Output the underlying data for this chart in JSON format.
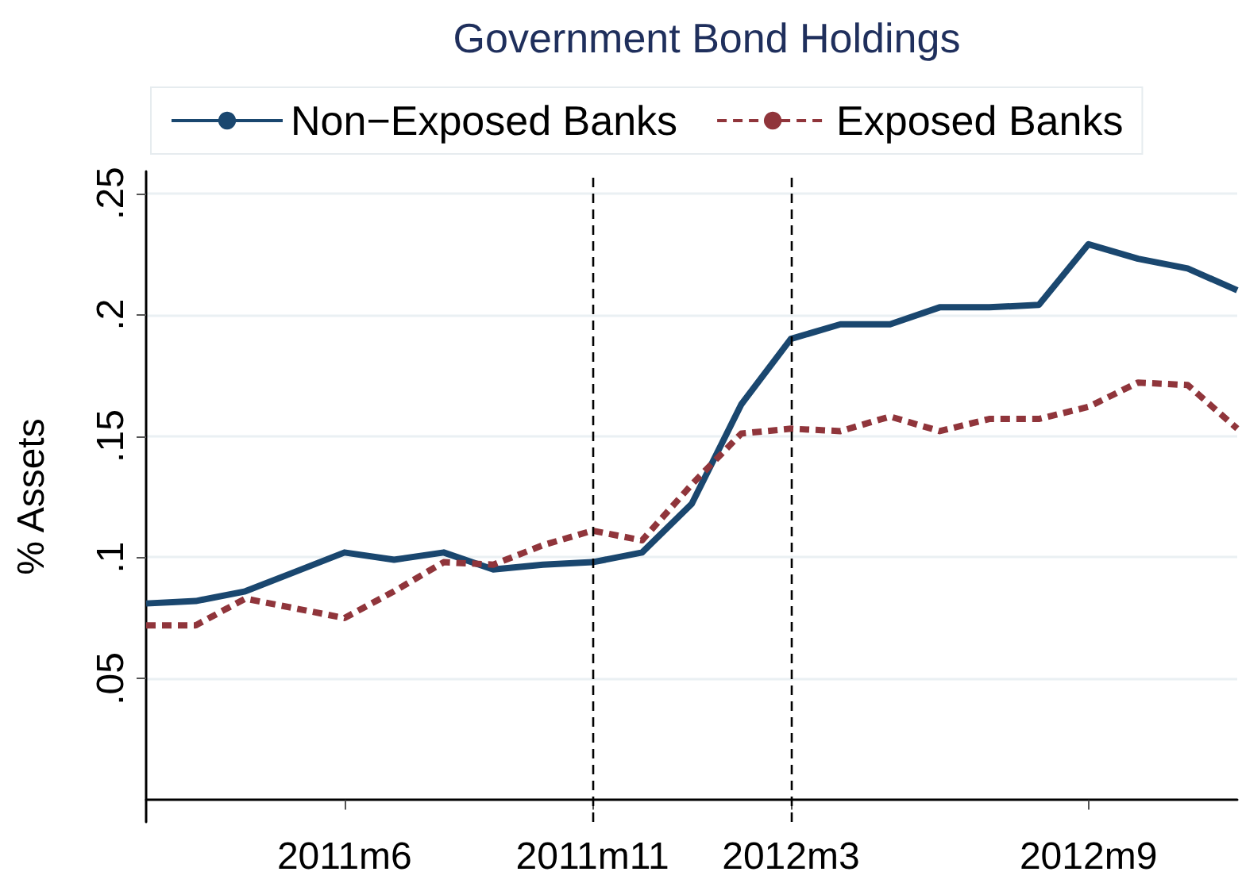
{
  "chart_data": {
    "type": "line",
    "title": "Government Bond Holdings",
    "ylabel": "% Assets",
    "categories": [
      null,
      null,
      null,
      null,
      "2011m6",
      null,
      null,
      null,
      null,
      "2011m11",
      null,
      null,
      null,
      "2012m3",
      null,
      null,
      null,
      null,
      null,
      "2012m9",
      null,
      null,
      null
    ],
    "series": [
      {
        "name": "Non−Exposed Banks",
        "color": "#1a476f",
        "line_style": "solid",
        "values": [
          0.081,
          0.082,
          0.086,
          0.094,
          0.102,
          0.099,
          0.102,
          0.095,
          0.097,
          0.098,
          0.102,
          0.122,
          0.163,
          0.19,
          0.196,
          0.196,
          0.203,
          0.203,
          0.204,
          0.229,
          0.223,
          0.219,
          0.21
        ]
      },
      {
        "name": "Exposed Banks",
        "color": "#90353b",
        "line_style": "dashed",
        "values": [
          0.072,
          0.072,
          0.083,
          0.079,
          0.075,
          0.086,
          0.098,
          0.097,
          0.105,
          0.111,
          0.107,
          0.13,
          0.151,
          0.153,
          0.152,
          0.158,
          0.152,
          0.157,
          0.157,
          0.162,
          0.172,
          0.171,
          0.153
        ]
      }
    ],
    "ylim": [
      -0.009,
      0.259
    ],
    "yticks": [
      {
        "value": 0.05,
        "label": ".05"
      },
      {
        "value": 0.1,
        "label": ".1"
      },
      {
        "value": 0.15,
        "label": ".15"
      },
      {
        "value": 0.2,
        "label": ".2"
      },
      {
        "value": 0.25,
        "label": ".25"
      }
    ],
    "ref_lines": [
      {
        "axis": "x",
        "value": "2011m11",
        "color": "#000000",
        "line_style": "dashed"
      },
      {
        "axis": "x",
        "value": "2012m3",
        "color": "#000000",
        "line_style": "dashed"
      }
    ],
    "grid": "y",
    "legend": "top",
    "marker": "none"
  }
}
